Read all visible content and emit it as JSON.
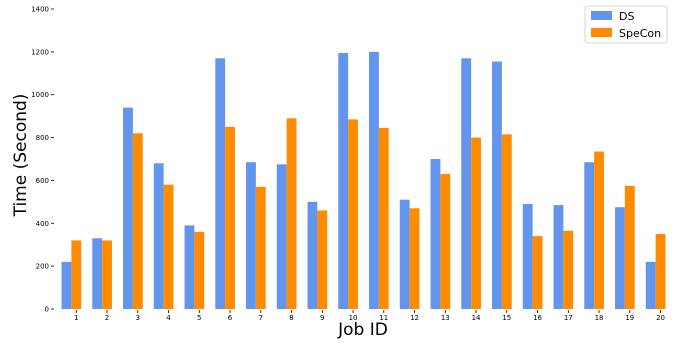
{
  "chart_data": {
    "type": "bar",
    "title": "",
    "xlabel": "Job ID",
    "ylabel": "Time (Second)",
    "ylim": [
      0,
      1400
    ],
    "yticks": [
      0,
      200,
      400,
      600,
      800,
      1000,
      1200,
      1400
    ],
    "grid": false,
    "legend_position": "top-right",
    "categories": [
      "1",
      "2",
      "3",
      "4",
      "5",
      "6",
      "7",
      "8",
      "9",
      "10",
      "11",
      "12",
      "13",
      "14",
      "15",
      "16",
      "17",
      "18",
      "19",
      "20"
    ],
    "series": [
      {
        "name": "DS",
        "color": "#6495ED",
        "values": [
          220,
          330,
          940,
          680,
          390,
          1170,
          685,
          675,
          500,
          1195,
          1200,
          510,
          700,
          1170,
          1155,
          490,
          485,
          685,
          475,
          220
        ]
      },
      {
        "name": "SpeCon",
        "color": "#FF8C00",
        "values": [
          320,
          320,
          820,
          580,
          360,
          850,
          570,
          890,
          460,
          885,
          845,
          470,
          630,
          800,
          815,
          340,
          365,
          735,
          575,
          350
        ]
      }
    ]
  }
}
